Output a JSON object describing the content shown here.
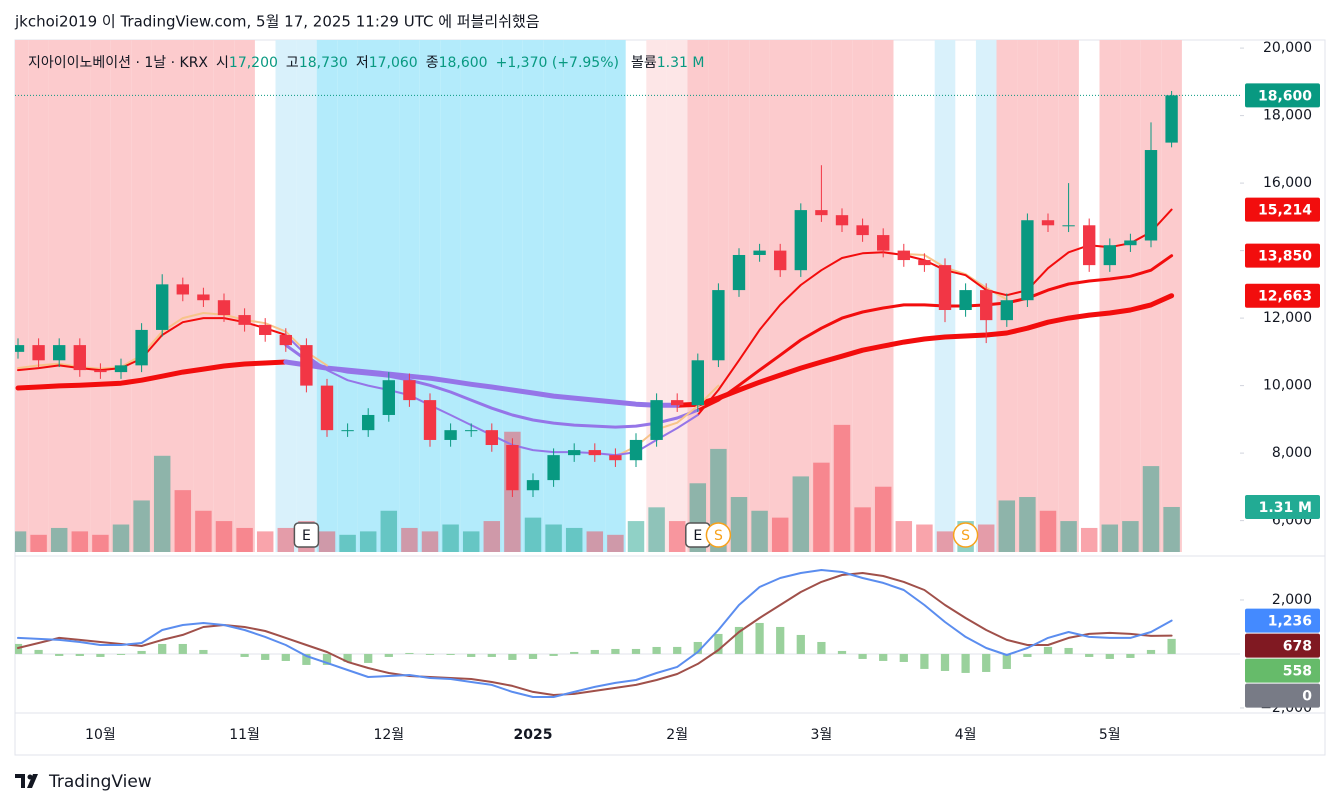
{
  "header": "jkchoi2019 이 TradingView.com, 5월 17, 2025 11:29 UTC 에 퍼블리쉬했음",
  "footer": "TradingView",
  "chart_data": {
    "type": "candlestick",
    "legend": {
      "symbol": "지아이이노베이션 · 1날 · KRX",
      "open_label": "시",
      "open": "17,200",
      "high_label": "고",
      "high": "18,730",
      "low_label": "저",
      "low": "17,060",
      "close_label": "종",
      "close": "18,600",
      "change": "+1,370 (+7.95%)",
      "volume_label": "볼륨",
      "volume": "1.31 M"
    },
    "categories": [
      null,
      null,
      null,
      null,
      "10월",
      null,
      null,
      null,
      null,
      null,
      null,
      "11월",
      null,
      null,
      null,
      null,
      null,
      null,
      "12월",
      null,
      null,
      null,
      null,
      null,
      null,
      "2025",
      null,
      null,
      null,
      null,
      null,
      null,
      "2월",
      null,
      null,
      null,
      null,
      null,
      null,
      "3월",
      null,
      null,
      null,
      null,
      null,
      null,
      "4월",
      null,
      null,
      null,
      null,
      null,
      null,
      "5월",
      null,
      null,
      null
    ],
    "open": [
      11000,
      11200,
      10750,
      11200,
      10460,
      10400,
      10600,
      11650,
      13000,
      12700,
      12530,
      12090,
      11800,
      11500,
      11200,
      10000,
      8680,
      8680,
      9130,
      10160,
      9570,
      8390,
      8680,
      8680,
      8240,
      6900,
      7200,
      7940,
      8090,
      7940,
      7790,
      8390,
      9570,
      9420,
      10750,
      12830,
      13870,
      14000,
      13420,
      15200,
      15050,
      14750,
      14460,
      14000,
      13720,
      13570,
      12240,
      12830,
      11940,
      12530,
      14900,
      14750,
      14750,
      13570,
      14160,
      14300,
      17200
    ],
    "high": [
      11400,
      11400,
      11400,
      11400,
      10660,
      10800,
      11850,
      13300,
      13200,
      12900,
      12730,
      12290,
      12000,
      11700,
      11400,
      10200,
      8880,
      9330,
      10400,
      10360,
      9770,
      8880,
      8880,
      8880,
      8440,
      7400,
      8140,
      8290,
      8290,
      8140,
      8590,
      9770,
      9770,
      10950,
      13030,
      14070,
      14200,
      14200,
      15400,
      16530,
      15250,
      14950,
      14660,
      14200,
      13920,
      13770,
      13030,
      13030,
      12730,
      15100,
      15100,
      16000,
      14950,
      14360,
      14500,
      17800,
      18730
    ],
    "low": [
      10800,
      10550,
      10550,
      10260,
      10200,
      10200,
      10400,
      11450,
      12500,
      12330,
      11890,
      11600,
      11300,
      11000,
      9800,
      8480,
      8480,
      8480,
      8930,
      9370,
      8190,
      8190,
      8480,
      8040,
      6700,
      6700,
      7000,
      7740,
      7740,
      7590,
      7590,
      8190,
      9220,
      9220,
      10550,
      12630,
      13670,
      13220,
      13220,
      14850,
      14550,
      14260,
      13800,
      13520,
      13370,
      11880,
      12040,
      11260,
      11740,
      12330,
      14550,
      14550,
      13370,
      13370,
      13960,
      14100,
      17060
    ],
    "close": [
      11200,
      10750,
      11200,
      10460,
      10400,
      10600,
      11650,
      13000,
      12700,
      12530,
      12090,
      11800,
      11500,
      11200,
      10000,
      8680,
      8680,
      9130,
      10160,
      9570,
      8390,
      8680,
      8680,
      8240,
      6900,
      7200,
      7940,
      8090,
      7940,
      7790,
      8390,
      9570,
      9420,
      10750,
      12830,
      13870,
      14000,
      13420,
      15200,
      15050,
      14750,
      14460,
      14000,
      13720,
      13570,
      12240,
      12830,
      11940,
      12530,
      14900,
      14750,
      14750,
      13570,
      14160,
      14300,
      16980,
      18600
    ],
    "up_color": "#089981",
    "down_color": "#f23645",
    "volume": [
      0.6,
      0.5,
      0.7,
      0.6,
      0.5,
      0.8,
      1.5,
      2.8,
      1.8,
      1.2,
      0.9,
      0.7,
      0.6,
      0.7,
      0.9,
      0.6,
      0.5,
      0.6,
      1.2,
      0.7,
      0.6,
      0.8,
      0.6,
      0.9,
      3.5,
      1.0,
      0.8,
      0.7,
      0.6,
      0.5,
      0.9,
      1.3,
      0.9,
      2.0,
      3.0,
      1.6,
      1.2,
      1.0,
      2.2,
      2.6,
      3.7,
      1.3,
      1.9,
      0.9,
      0.8,
      0.6,
      0.9,
      0.8,
      1.5,
      1.6,
      1.2,
      0.9,
      0.7,
      0.8,
      0.9,
      2.5,
      1.31
    ],
    "volume_lim": [
      0,
      14.9
    ],
    "bands": [
      "#fccbcd",
      "#fccbcd",
      "#fccbcd",
      "#fccbcd",
      "#fccbcd",
      "#fccbcd",
      "#fccbcd",
      "#fccbcd",
      "#fccbcd",
      "#fccbcd",
      "#fccbcd",
      "#fccbcd",
      null,
      "#d9f1fb",
      "#d9f1fb",
      "#b3ebfb",
      "#b3ebfb",
      "#b3ebfb",
      "#b3ebfb",
      "#b3ebfb",
      "#b3ebfb",
      "#b3ebfb",
      "#b3ebfb",
      "#b3ebfb",
      "#b3ebfb",
      "#b3ebfb",
      "#b3ebfb",
      "#b3ebfb",
      "#b3ebfb",
      "#b3ebfb",
      null,
      "#fde6e7",
      "#fde6e7",
      "#fccbcd",
      "#fccbcd",
      "#fccbcd",
      "#fccbcd",
      "#fccbcd",
      "#fccbcd",
      "#fccbcd",
      "#fccbcd",
      "#fccbcd",
      "#fccbcd",
      null,
      null,
      "#d9f1fb",
      null,
      "#d9f1fb",
      "#fccbcd",
      "#fccbcd",
      "#fccbcd",
      "#fccbcd",
      null,
      "#fccbcd",
      "#fccbcd",
      "#fccbcd",
      "#fccbcd"
    ],
    "lines": [
      {
        "color": "#f20d0d",
        "width": 5,
        "values": [
          9930,
          9960,
          9990,
          10010,
          10040,
          10070,
          10160,
          10280,
          10400,
          10490,
          10580,
          10640,
          10670,
          10700,
          null,
          null,
          null,
          null,
          null,
          null,
          null,
          null,
          null,
          null,
          null,
          null,
          null,
          null,
          null,
          null,
          null,
          null,
          9420,
          9450,
          9630,
          9870,
          10100,
          10310,
          10520,
          10700,
          10870,
          11050,
          11170,
          11290,
          11380,
          11440,
          11470,
          11500,
          11560,
          11700,
          11880,
          12000,
          12090,
          12150,
          12240,
          12390,
          12663
        ]
      },
      {
        "color": "#9575e8",
        "width": 5,
        "values": [
          null,
          null,
          null,
          null,
          null,
          null,
          null,
          null,
          null,
          null,
          null,
          null,
          null,
          10700,
          10610,
          10520,
          10460,
          10400,
          10340,
          10280,
          10220,
          10130,
          10040,
          9960,
          9870,
          9780,
          9690,
          9630,
          9570,
          9510,
          9450,
          9420,
          9420,
          null,
          null,
          null,
          null,
          null,
          null,
          null,
          null,
          null,
          null,
          null,
          null,
          null,
          null,
          null,
          null,
          null,
          null,
          null,
          null,
          null,
          null,
          null,
          null
        ]
      },
      {
        "color": "#f20d0d",
        "width": 3,
        "values": [
          null,
          null,
          null,
          null,
          null,
          null,
          null,
          null,
          null,
          null,
          null,
          null,
          null,
          null,
          null,
          null,
          null,
          null,
          null,
          null,
          null,
          null,
          null,
          null,
          null,
          null,
          null,
          null,
          null,
          null,
          null,
          null,
          null,
          9270,
          9570,
          10010,
          10460,
          10900,
          11350,
          11700,
          12000,
          12180,
          12300,
          12390,
          12390,
          12360,
          12360,
          12390,
          12450,
          12590,
          12830,
          13010,
          13100,
          13160,
          13240,
          13420,
          13850
        ]
      },
      {
        "color": "#9575e8",
        "width": 3,
        "values": [
          null,
          null,
          null,
          null,
          null,
          null,
          null,
          null,
          null,
          null,
          null,
          null,
          null,
          11200,
          10760,
          10520,
          10400,
          10340,
          10280,
          10160,
          10010,
          9810,
          9570,
          9330,
          9130,
          8980,
          8890,
          8830,
          8800,
          8770,
          8800,
          8890,
          9040,
          9270,
          null,
          null,
          null,
          null,
          null,
          null,
          null,
          null,
          null,
          null,
          null,
          null,
          null,
          null,
          null,
          null,
          null,
          null,
          null,
          null,
          null,
          null,
          null
        ]
      },
      {
        "color": "#f7c48a",
        "width": 2,
        "values": [
          10520,
          10600,
          10650,
          10550,
          10500,
          10550,
          10900,
          11600,
          12000,
          12150,
          12100,
          11950,
          11850,
          11600,
          11000,
          10600,
          null,
          null,
          null,
          null,
          null,
          null,
          null,
          null,
          null,
          null,
          null,
          null,
          null,
          7900,
          8200,
          8700,
          8900,
          9400,
          10000,
          null,
          null,
          null,
          null,
          null,
          null,
          null,
          null,
          13900,
          13870,
          13500,
          13300,
          12900,
          12550,
          null,
          null,
          null,
          null,
          null,
          null,
          null,
          null
        ]
      },
      {
        "color": "#f20d0d",
        "width": 2,
        "values": [
          10460,
          10520,
          10600,
          10520,
          10460,
          10520,
          10800,
          11500,
          11880,
          12000,
          12000,
          11880,
          11700,
          11500,
          null,
          null,
          null,
          null,
          null,
          null,
          null,
          null,
          null,
          null,
          null,
          null,
          null,
          null,
          null,
          null,
          null,
          null,
          null,
          9130,
          9870,
          10750,
          11650,
          12390,
          12980,
          13420,
          13780,
          13920,
          13950,
          13870,
          13720,
          13420,
          13270,
          12830,
          12680,
          12830,
          13480,
          13950,
          14160,
          14100,
          14220,
          14550,
          15214
        ]
      },
      {
        "color": "#9575e8",
        "width": 2,
        "values": [
          null,
          null,
          null,
          null,
          null,
          null,
          null,
          null,
          null,
          null,
          null,
          null,
          null,
          11500,
          10900,
          10460,
          10160,
          10000,
          9870,
          9720,
          9420,
          9130,
          8830,
          8530,
          8240,
          8090,
          8030,
          8030,
          8000,
          7940,
          8030,
          8390,
          8740,
          9130,
          null,
          null,
          null,
          null,
          null,
          null,
          null,
          null,
          null,
          null,
          null,
          null,
          null,
          null,
          null,
          null,
          null,
          null,
          null,
          null,
          null,
          null,
          null
        ]
      }
    ],
    "ylim": [
      5070,
      20240
    ],
    "yticks": [
      {
        "value": 6000,
        "label": "6,000"
      },
      {
        "value": 8000,
        "label": "8,000"
      },
      {
        "value": 10000,
        "label": "10,000"
      },
      {
        "value": 12000,
        "label": "12,000"
      },
      {
        "value": 14000,
        "label": "14,000"
      },
      {
        "value": 16000,
        "label": "16,000"
      },
      {
        "value": 18000,
        "label": "18,000"
      },
      {
        "value": 20000,
        "label": "20,000"
      }
    ],
    "price_tags": [
      {
        "value": 18600,
        "label": "18,600",
        "color": "#089981"
      },
      {
        "value": 15214,
        "label": "15,214",
        "color": "#f20d0d"
      },
      {
        "value": 13850,
        "label": "13,850",
        "color": "#f20d0d"
      },
      {
        "value": 12663,
        "label": "12,663",
        "color": "#f20d0d"
      }
    ],
    "volume_tag": {
      "value": 1.31,
      "label": "1.31 M",
      "color": "#22ab94"
    },
    "events": [
      {
        "label": "E",
        "at": 14,
        "shape": "square",
        "color": "#555555"
      },
      {
        "label": "E",
        "at": 33,
        "shape": "square",
        "color": "#555555"
      },
      {
        "label": "S",
        "at": 34,
        "shape": "circle",
        "color": "#f7a21b"
      },
      {
        "label": "S",
        "at": 46,
        "shape": "circle",
        "color": "#f7a21b"
      }
    ],
    "macd": {
      "macd": [
        593,
        556,
        519,
        444,
        333,
        333,
        407,
        889,
        1074,
        1148,
        1074,
        889,
        630,
        333,
        -74,
        -333,
        -593,
        -852,
        -815,
        -778,
        -889,
        -926,
        -1037,
        -1148,
        -1407,
        -1593,
        -1593,
        -1407,
        -1222,
        -1074,
        -963,
        -704,
        -481,
        74,
        889,
        1815,
        2481,
        2815,
        3000,
        3111,
        3037,
        2815,
        2630,
        2370,
        1815,
        1185,
        630,
        222,
        -37,
        222,
        593,
        815,
        630,
        593,
        593,
        815,
        1236
      ],
      "signal": [
        222,
        407,
        593,
        519,
        444,
        370,
        296,
        519,
        704,
        1000,
        1074,
        1000,
        852,
        593,
        333,
        74,
        -296,
        -519,
        -704,
        -815,
        -852,
        -889,
        -926,
        -1037,
        -1185,
        -1407,
        -1519,
        -1481,
        -1370,
        -1259,
        -1148,
        -963,
        -741,
        -370,
        148,
        815,
        1333,
        1815,
        2296,
        2667,
        2926,
        3000,
        2889,
        2667,
        2370,
        1815,
        1333,
        889,
        519,
        333,
        333,
        593,
        741,
        778,
        741,
        667,
        678
      ],
      "histogram": [
        371,
        149,
        -74,
        -75,
        -111,
        -37,
        111,
        370,
        370,
        148,
        0,
        -111,
        -222,
        -260,
        -407,
        -407,
        -297,
        -333,
        -111,
        37,
        -37,
        -37,
        -111,
        -111,
        -222,
        -186,
        -74,
        74,
        148,
        185,
        185,
        259,
        260,
        444,
        741,
        1000,
        1148,
        1000,
        704,
        444,
        111,
        -185,
        -259,
        -297,
        -555,
        -630,
        -703,
        -667,
        -556,
        -111,
        260,
        222,
        -111,
        -185,
        -148,
        148,
        558
      ],
      "macd_color": "#5b8def",
      "signal_color": "#a0504a",
      "histogram_color": "#9ad19c",
      "y2lim": [
        -2150,
        3480
      ],
      "y2ticks": [
        {
          "value": 2000,
          "label": "2,000"
        },
        {
          "value": -2000,
          "label": "−2,000"
        }
      ],
      "tags": [
        {
          "value": 1236,
          "label": "1,236",
          "color": "#448aff"
        },
        {
          "value": 678,
          "label": "678",
          "color": "#801922"
        },
        {
          "value": 558,
          "label": "558",
          "color": "#66bb6a"
        },
        {
          "value": 0,
          "label": "0",
          "color": "#787b86"
        }
      ]
    }
  }
}
